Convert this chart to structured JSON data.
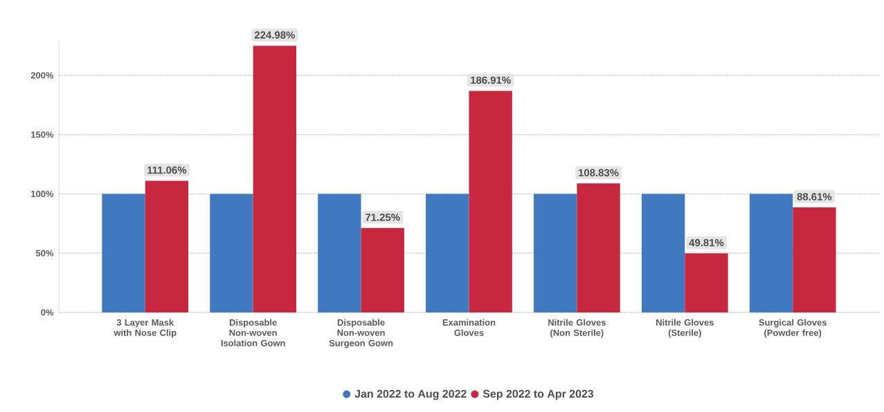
{
  "chart_data": {
    "type": "bar",
    "categories": [
      "3 Layer Mask with Nose Clip",
      "Disposable Non-woven Isolation Gown",
      "Disposable Non-woven Surgeon Gown",
      "Examination Gloves",
      "Nitrile Gloves (Non Sterile)",
      "Nitrile Gloves (Sterile)",
      "Surgical Gloves (Powder free)"
    ],
    "series": [
      {
        "name": "Jan 2022 to Aug 2022",
        "color": "#4179c0",
        "values": [
          100,
          100,
          100,
          100,
          100,
          100,
          100
        ]
      },
      {
        "name": "Sep 2022 to Apr 2023",
        "color": "#c8283f",
        "values": [
          111.06,
          224.98,
          71.25,
          186.91,
          108.83,
          49.81,
          88.61
        ],
        "value_labels": [
          "111.06%",
          "224.98%",
          "71.25%",
          "186.91%",
          "108.83%",
          "49.81%",
          "88.61%"
        ]
      }
    ],
    "ylim": [
      0,
      230
    ],
    "yticks": [
      {
        "value": 0,
        "label": "0%"
      },
      {
        "value": 50,
        "label": "50%"
      },
      {
        "value": 100,
        "label": "100%"
      },
      {
        "value": 150,
        "label": "150%"
      },
      {
        "value": 200,
        "label": "200%"
      }
    ],
    "grid": "y",
    "legend": "bottom"
  }
}
